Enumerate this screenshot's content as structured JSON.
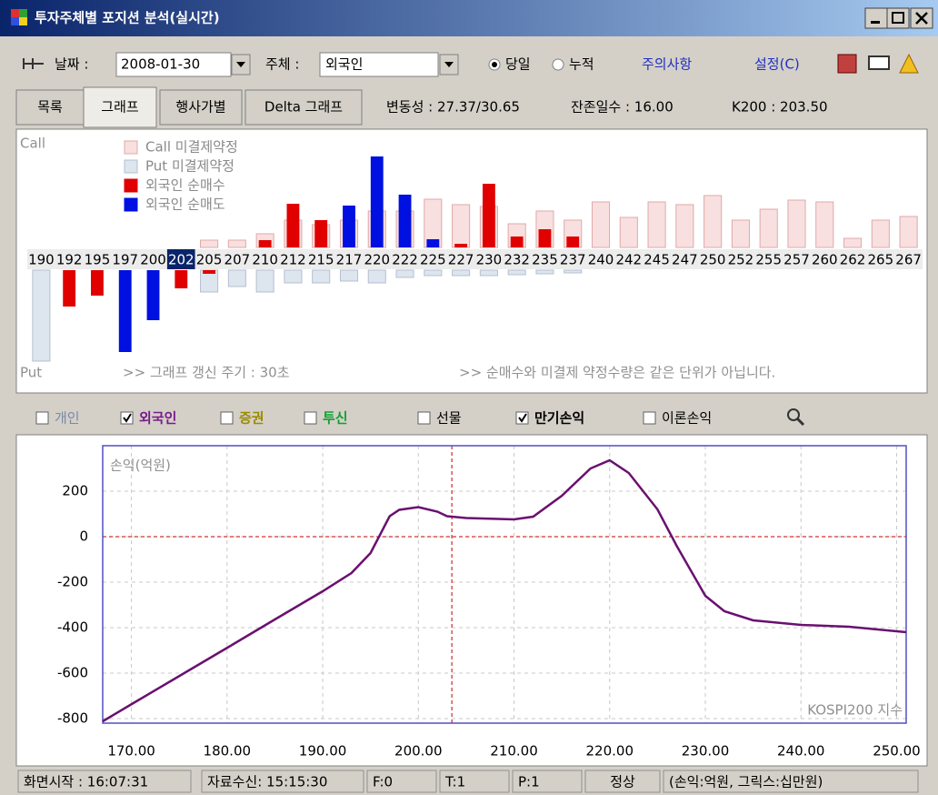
{
  "window": {
    "title": "투자주체별 포지션 분석(실시간)"
  },
  "toolbar": {
    "date_label": "날짜 :",
    "date": "2008-01-30",
    "subject_label": "주체 :",
    "subject": "외국인",
    "radios": [
      "당일",
      "누적"
    ],
    "radio_selected": 0,
    "links": [
      "주의사항",
      "설정(C)"
    ]
  },
  "tabs": [
    "목록",
    "그래프",
    "행사가별",
    "Delta 그래프"
  ],
  "active_tab": 1,
  "info": [
    "변동성 : 27.37/30.65",
    "잔존일수 : 16.00",
    "K200 : 203.50"
  ],
  "checkboxes": [
    {
      "label": "개인",
      "checked": false,
      "color": "#7a8aa8"
    },
    {
      "label": "외국인",
      "checked": true,
      "color": "#7a1a8a"
    },
    {
      "label": "증권",
      "checked": false,
      "color": "#9a8a00"
    },
    {
      "label": "투신",
      "checked": false,
      "color": "#10a030"
    },
    {
      "label": "선물",
      "checked": false,
      "color": "#000000"
    },
    {
      "label": "만기손익",
      "checked": true,
      "color": "#000000"
    },
    {
      "label": "이론손익",
      "checked": false,
      "color": "#000000"
    }
  ],
  "status": [
    "화면시작 : 16:07:31",
    "자료수신: 15:15:30",
    "F:0",
    "T:1",
    "P:1",
    "정상",
    "(손익:억원, 그릭스:십만원)"
  ],
  "chart_data": [
    {
      "type": "bar",
      "top_label": "Call",
      "bottom_label": "Put",
      "annotations": [
        ">> 그래프 갱신 주기 : 30초",
        ">> 순매수와 미결제 약정수량은 같은 단위가 아닙니다."
      ],
      "categories": [
        "190",
        "192",
        "195",
        "197",
        "200",
        "202",
        "205",
        "207",
        "210",
        "212",
        "215",
        "217",
        "220",
        "222",
        "225",
        "227",
        "230",
        "232",
        "235",
        "237",
        "240",
        "242",
        "245",
        "247",
        "250",
        "252",
        "255",
        "257",
        "260",
        "262",
        "265",
        "267"
      ],
      "highlight_index": 5,
      "series": [
        {
          "name": "Call 미결제약정",
          "color": "#f9e0e0",
          "stroke": "#e0a8a8",
          "side": "call",
          "values": [
            0,
            0,
            0,
            0,
            0,
            0,
            8,
            8,
            15,
            30,
            25,
            30,
            40,
            40,
            53,
            47,
            45,
            26,
            40,
            30,
            50,
            33,
            50,
            47,
            57,
            30,
            42,
            52,
            50,
            10,
            30,
            34
          ]
        },
        {
          "name": "Put 미결제약정",
          "color": "#dde5ef",
          "stroke": "#b4c0d0",
          "side": "put",
          "values": [
            100,
            0,
            0,
            0,
            0,
            0,
            24,
            18,
            24,
            14,
            14,
            12,
            14,
            8,
            6,
            6,
            6,
            5,
            4,
            3,
            0,
            0,
            0,
            0,
            0,
            0,
            0,
            0,
            0,
            0,
            0,
            0
          ]
        },
        {
          "name": "외국인 순매수",
          "color": "#e00000",
          "call": [
            0,
            0,
            0,
            0,
            0,
            0,
            0,
            0,
            8,
            48,
            30,
            0,
            0,
            0,
            0,
            4,
            70,
            12,
            20,
            12,
            0,
            0,
            0,
            0,
            0,
            0,
            0,
            0,
            0,
            0,
            0,
            0
          ],
          "put": [
            0,
            40,
            28,
            0,
            0,
            20,
            4,
            0,
            0,
            0,
            0,
            0,
            0,
            0,
            0,
            0,
            0,
            0,
            0,
            0,
            0,
            0,
            0,
            0,
            0,
            0,
            0,
            0,
            0,
            0,
            0,
            0
          ]
        },
        {
          "name": "외국인 순매도",
          "color": "#0010e0",
          "call": [
            0,
            0,
            0,
            0,
            0,
            0,
            0,
            0,
            0,
            0,
            0,
            46,
            100,
            58,
            9,
            0,
            0,
            0,
            0,
            0,
            0,
            0,
            0,
            0,
            0,
            0,
            0,
            0,
            0,
            0,
            0,
            0
          ],
          "put": [
            0,
            0,
            0,
            90,
            55,
            0,
            0,
            0,
            0,
            0,
            0,
            0,
            0,
            0,
            0,
            0,
            0,
            0,
            0,
            0,
            0,
            0,
            0,
            0,
            0,
            0,
            0,
            0,
            0,
            0,
            0,
            0
          ]
        }
      ]
    },
    {
      "type": "line",
      "y_label": "손익(억원)",
      "x_label": "KOSPI200 지수",
      "x": [
        167,
        170,
        175,
        180,
        185,
        190,
        193,
        195,
        197,
        198,
        200,
        202,
        203,
        205,
        210,
        212,
        215,
        218,
        220,
        222,
        225,
        227,
        230,
        232,
        235,
        240,
        245,
        250,
        251
      ],
      "series": [
        {
          "color": "#6a1070",
          "values": [
            -812,
            -737,
            -613,
            -489,
            -364,
            -240,
            -160,
            -72,
            90,
            118,
            130,
            110,
            90,
            82,
            76,
            88,
            180,
            300,
            336,
            280,
            120,
            -40,
            -260,
            -328,
            -368,
            -388,
            -396,
            -416,
            -420
          ]
        }
      ],
      "xlim": [
        167,
        251
      ],
      "ylim": [
        -820,
        400
      ],
      "xticks": [
        {
          "value": 170,
          "label": "170.00"
        },
        {
          "value": 180,
          "label": "180.00"
        },
        {
          "value": 190,
          "label": "190.00"
        },
        {
          "value": 200,
          "label": "200.00"
        },
        {
          "value": 210,
          "label": "210.00"
        },
        {
          "value": 220,
          "label": "220.00"
        },
        {
          "value": 230,
          "label": "230.00"
        },
        {
          "value": 240,
          "label": "240.00"
        },
        {
          "value": 250,
          "label": "250.00"
        }
      ],
      "yticks": [
        200,
        0,
        -200,
        -400,
        -600,
        -800
      ],
      "grid": true,
      "zero_line": true,
      "reference_x": 203.5,
      "reference_color": "#c00000"
    }
  ]
}
